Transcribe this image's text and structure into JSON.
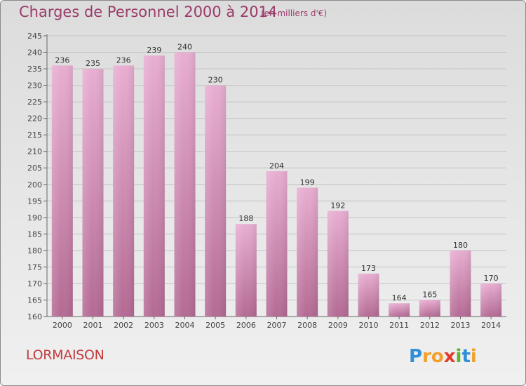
{
  "header": {
    "title": "Charges de Personnel 2000 à 2014",
    "subtitle": "(en milliers d'€)"
  },
  "footer": {
    "commune": "LORMAISON",
    "brand": "Proxiti"
  },
  "colors": {
    "bar_top": "#e8aed2",
    "bar_bottom": "#b46a94",
    "text_accent": "#9a3b6a",
    "commune": "#c23b3b"
  },
  "chart_data": {
    "type": "bar",
    "categories": [
      "2000",
      "2001",
      "2002",
      "2003",
      "2004",
      "2005",
      "2006",
      "2007",
      "2008",
      "2009",
      "2010",
      "2011",
      "2012",
      "2013",
      "2014"
    ],
    "values": [
      236,
      235,
      236,
      239,
      240,
      230,
      188,
      204,
      199,
      192,
      173,
      164,
      165,
      180,
      170
    ],
    "ylim": [
      160,
      245
    ],
    "ytick_step": 5,
    "grid": true,
    "legend": "none"
  }
}
